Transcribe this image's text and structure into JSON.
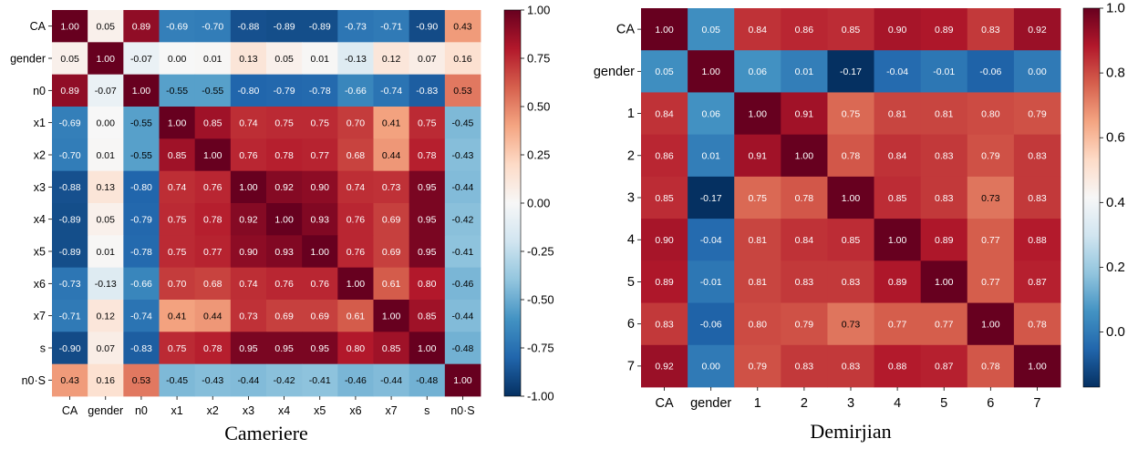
{
  "chart_data": [
    {
      "type": "heatmap",
      "title": "Cameriere",
      "labels": [
        "CA",
        "gender",
        "n0",
        "x1",
        "x2",
        "x3",
        "x4",
        "x5",
        "x6",
        "x7",
        "s",
        "n0·S"
      ],
      "matrix": [
        [
          1.0,
          0.05,
          0.89,
          -0.69,
          -0.7,
          -0.88,
          -0.89,
          -0.89,
          -0.73,
          -0.71,
          -0.9,
          0.43
        ],
        [
          0.05,
          1.0,
          -0.07,
          0.0,
          0.01,
          0.13,
          0.05,
          0.01,
          -0.13,
          0.12,
          0.07,
          0.16
        ],
        [
          0.89,
          -0.07,
          1.0,
          -0.55,
          -0.55,
          -0.8,
          -0.79,
          -0.78,
          -0.66,
          -0.74,
          -0.83,
          0.53
        ],
        [
          -0.69,
          0.0,
          -0.55,
          1.0,
          0.85,
          0.74,
          0.75,
          0.75,
          0.7,
          0.41,
          0.75,
          -0.45
        ],
        [
          -0.7,
          0.01,
          -0.55,
          0.85,
          1.0,
          0.76,
          0.78,
          0.77,
          0.68,
          0.44,
          0.78,
          -0.43
        ],
        [
          -0.88,
          0.13,
          -0.8,
          0.74,
          0.76,
          1.0,
          0.92,
          0.9,
          0.74,
          0.73,
          0.95,
          -0.44
        ],
        [
          -0.89,
          0.05,
          -0.79,
          0.75,
          0.78,
          0.92,
          1.0,
          0.93,
          0.76,
          0.69,
          0.95,
          -0.42
        ],
        [
          -0.89,
          0.01,
          -0.78,
          0.75,
          0.77,
          0.9,
          0.93,
          1.0,
          0.76,
          0.69,
          0.95,
          -0.41
        ],
        [
          -0.73,
          -0.13,
          -0.66,
          0.7,
          0.68,
          0.74,
          0.76,
          0.76,
          1.0,
          0.61,
          0.8,
          -0.46
        ],
        [
          -0.71,
          0.12,
          -0.74,
          0.41,
          0.44,
          0.73,
          0.69,
          0.69,
          0.61,
          1.0,
          0.85,
          -0.44
        ],
        [
          -0.9,
          0.07,
          -0.83,
          0.75,
          0.78,
          0.95,
          0.95,
          0.95,
          0.8,
          0.85,
          1.0,
          -0.48
        ],
        [
          0.43,
          0.16,
          0.53,
          -0.45,
          -0.43,
          -0.44,
          -0.42,
          -0.41,
          -0.46,
          -0.44,
          -0.48,
          1.0
        ]
      ],
      "cell_labels": [
        [
          "1.00",
          "0.05",
          "0.89",
          "-0.69",
          "-0.70",
          "-0.88",
          "-0.89",
          "-0.89",
          "-0.73",
          "-0.71",
          "-0.90",
          "0.43"
        ],
        [
          "0.05",
          "1.00",
          "-0.07",
          "0.00",
          "0.01",
          "0.13",
          "0.05",
          "0.01",
          "-0.13",
          "0.12",
          "0.07",
          "0.16"
        ],
        [
          "0.89",
          "-0.07",
          "1.00",
          "-0.55",
          "-0.55",
          "-0.80",
          "-0.79",
          "-0.78",
          "-0.66",
          "-0.74",
          "-0.83",
          "0.53"
        ],
        [
          "-0.69",
          "0.00",
          "-0.55",
          "1.00",
          "0.85",
          "0.74",
          "0.75",
          "0.75",
          "0.70",
          "0.41",
          "0.75",
          "-0.45"
        ],
        [
          "-0.70",
          "0.01",
          "-0.55",
          "0.85",
          "1.00",
          "0.76",
          "0.78",
          "0.77",
          "0.68",
          "0.44",
          "0.78",
          "-0.43"
        ],
        [
          "-0.88",
          "0.13",
          "-0.80",
          "0.74",
          "0.76",
          "1.00",
          "0.92",
          "0.90",
          "0.74",
          "0.73",
          "0.95",
          "-0.44"
        ],
        [
          "-0.89",
          "0.05",
          "-0.79",
          "0.75",
          "0.78",
          "0.92",
          "1.00",
          "0.93",
          "0.76",
          "0.69",
          "0.95",
          "-0.42"
        ],
        [
          "-0.89",
          "0.01",
          "-0.78",
          "0.75",
          "0.77",
          "0.90",
          "0.93",
          "1.00",
          "0.76",
          "0.69",
          "0.95",
          "-0.41"
        ],
        [
          "-0.73",
          "-0.13",
          "-0.66",
          "0.70",
          "0.68",
          "0.74",
          "0.76",
          "0.76",
          "1.00",
          "0.61",
          "0.80",
          "-0.46"
        ],
        [
          "-0.71",
          "0.12",
          "-0.74",
          "0.41",
          "0.44",
          "0.73",
          "0.69",
          "0.69",
          "0.61",
          "1.00",
          "0.85",
          "-0.44"
        ],
        [
          "-0.90",
          "0.07",
          "-0.83",
          "0.75",
          "0.78",
          "0.95",
          "0.95",
          "0.95",
          "0.80",
          "0.85",
          "1.00",
          "-0.48"
        ],
        [
          "0.43",
          "0.16",
          "0.53",
          "-0.45",
          "-0.43",
          "-0.44",
          "-0.42",
          "-0.41",
          "-0.46",
          "-0.44",
          "-0.48",
          "1.00"
        ]
      ],
      "vmin": -1.0,
      "vmax": 1.0,
      "colorbar_ticks": [
        1.0,
        0.75,
        0.5,
        0.25,
        0.0,
        -0.25,
        -0.5,
        -0.75,
        -1.0
      ],
      "colorbar_tick_labels": [
        "1.00",
        "0.75",
        "0.50",
        "0.25",
        "0.00",
        "-0.25",
        "-0.50",
        "-0.75",
        "-1.00"
      ],
      "colormap": "RdBu_r"
    },
    {
      "type": "heatmap",
      "title": "Demirjian",
      "labels": [
        "CA",
        "gender",
        "1",
        "2",
        "3",
        "4",
        "5",
        "6",
        "7"
      ],
      "matrix": [
        [
          1.0,
          0.05,
          0.84,
          0.86,
          0.85,
          0.9,
          0.89,
          0.83,
          0.92
        ],
        [
          0.05,
          1.0,
          0.06,
          0.01,
          -0.17,
          -0.04,
          -0.01,
          -0.06,
          0.0
        ],
        [
          0.84,
          0.06,
          1.0,
          0.91,
          0.75,
          0.81,
          0.81,
          0.8,
          0.79
        ],
        [
          0.86,
          0.01,
          0.91,
          1.0,
          0.78,
          0.84,
          0.83,
          0.79,
          0.83
        ],
        [
          0.85,
          -0.17,
          0.75,
          0.78,
          1.0,
          0.85,
          0.83,
          0.73,
          0.83
        ],
        [
          0.9,
          -0.04,
          0.81,
          0.84,
          0.85,
          1.0,
          0.89,
          0.77,
          0.88
        ],
        [
          0.89,
          -0.01,
          0.81,
          0.83,
          0.83,
          0.89,
          1.0,
          0.77,
          0.87
        ],
        [
          0.83,
          -0.06,
          0.8,
          0.79,
          0.73,
          0.77,
          0.77,
          1.0,
          0.78
        ],
        [
          0.92,
          0.0,
          0.79,
          0.83,
          0.83,
          0.88,
          0.87,
          0.78,
          1.0
        ]
      ],
      "cell_labels": [
        [
          "1.00",
          "0.05",
          "0.84",
          "0.86",
          "0.85",
          "0.90",
          "0.89",
          "0.83",
          "0.92"
        ],
        [
          "0.05",
          "1.00",
          "0.06",
          "0.01",
          "-0.17",
          "-0.04",
          "-0.01",
          "-0.06",
          "0.00"
        ],
        [
          "0.84",
          "0.06",
          "1.00",
          "0.91",
          "0.75",
          "0.81",
          "0.81",
          "0.80",
          "0.79"
        ],
        [
          "0.86",
          "0.01",
          "0.91",
          "1.00",
          "0.78",
          "0.84",
          "0.83",
          "0.79",
          "0.83"
        ],
        [
          "0.85",
          "-0.17",
          "0.75",
          "0.78",
          "1.00",
          "0.85",
          "0.83",
          "0.73",
          "0.83"
        ],
        [
          "0.90",
          "-0.04",
          "0.81",
          "0.84",
          "0.85",
          "1.00",
          "0.89",
          "0.77",
          "0.88"
        ],
        [
          "0.89",
          "-0.01",
          "0.81",
          "0.83",
          "0.83",
          "0.89",
          "1.00",
          "0.77",
          "0.87"
        ],
        [
          "0.83",
          "-0.06",
          "0.80",
          "0.79",
          "0.73",
          "0.77",
          "0.77",
          "1.00",
          "0.78"
        ],
        [
          "0.92",
          "0.00",
          "0.79",
          "0.83",
          "0.83",
          "0.88",
          "0.87",
          "0.78",
          "1.00"
        ]
      ],
      "vmin": -0.17,
      "vmax": 1.0,
      "colorbar_ticks": [
        1.0,
        0.8,
        0.6,
        0.4,
        0.2,
        0.0
      ],
      "colorbar_tick_labels": [
        "1.0",
        "0.8",
        "0.6",
        "0.4",
        "0.2",
        "0.0"
      ],
      "colormap": "RdBu_r"
    }
  ]
}
